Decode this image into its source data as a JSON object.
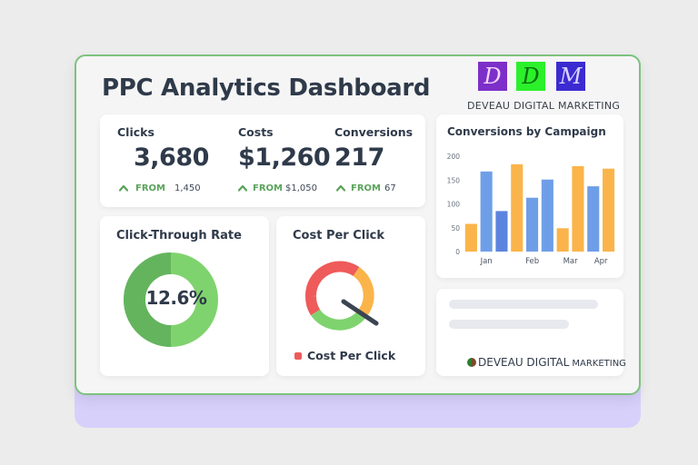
{
  "header": {
    "title": "PPC Analytics Dashboard",
    "logo_letters": [
      "D",
      "D",
      "M"
    ],
    "brand": "DEVEAU DIGITAL MARKETING"
  },
  "metrics": [
    {
      "label": "Clicks",
      "value": "3,680",
      "from_word": "FROM",
      "from_value": "1,450"
    },
    {
      "label": "Costs",
      "value": "$1,260",
      "from_word": "FROM",
      "from_value": "$1,050"
    },
    {
      "label": "Conversions",
      "value": "217",
      "from_word": "FROM",
      "from_value": "67"
    }
  ],
  "ctr": {
    "title": "Click-Through Rate",
    "value_label": "12.6%"
  },
  "cpc": {
    "title": "Cost Per Click",
    "legend": "Cost Per Click"
  },
  "bottom_brand": {
    "main": "DEVEAU DIGITAL",
    "sub": "MARKETING"
  },
  "colors": {
    "accent_green": "#7dc27e",
    "green_up": "#5ba35b",
    "bar_orange": "#fbb44a",
    "bar_blue": "#6f9ee8",
    "bar_blue_dark": "#5b84df",
    "gauge_red": "#ef5a5a",
    "gauge_orange": "#fbb44a",
    "gauge_green": "#7fd36e",
    "legend_red": "#ef5a5a"
  },
  "icons": {
    "trend": "chevron-up-icon",
    "brand_mark": "leaf-dot-icon"
  },
  "chart_data": {
    "type": "bar",
    "title": "Conversions by Campaign",
    "ylim": [
      0,
      200
    ],
    "yticks": [
      0,
      50,
      100,
      150,
      200
    ],
    "x_labels": [
      "Jan",
      "Feb",
      "Mar",
      "Apr"
    ],
    "bars": [
      {
        "group": "Jan",
        "color": "#fbb44a",
        "value": 58
      },
      {
        "group": "Jan",
        "color": "#6f9ee8",
        "value": 168
      },
      {
        "group": "Jan",
        "color": "#5b84df",
        "value": 85
      },
      {
        "group": "Feb",
        "color": "#fbb44a",
        "value": 183
      },
      {
        "group": "Feb",
        "color": "#6f9ee8",
        "value": 113
      },
      {
        "group": "Feb",
        "color": "#6f9ee8",
        "value": 151
      },
      {
        "group": "Mar",
        "color": "#fbb44a",
        "value": 49
      },
      {
        "group": "Mar",
        "color": "#fbb44a",
        "value": 179
      },
      {
        "group": "Apr",
        "color": "#6f9ee8",
        "value": 137
      },
      {
        "group": "Apr",
        "color": "#fbb44a",
        "value": 174
      }
    ],
    "grid": false,
    "legend": "none"
  }
}
